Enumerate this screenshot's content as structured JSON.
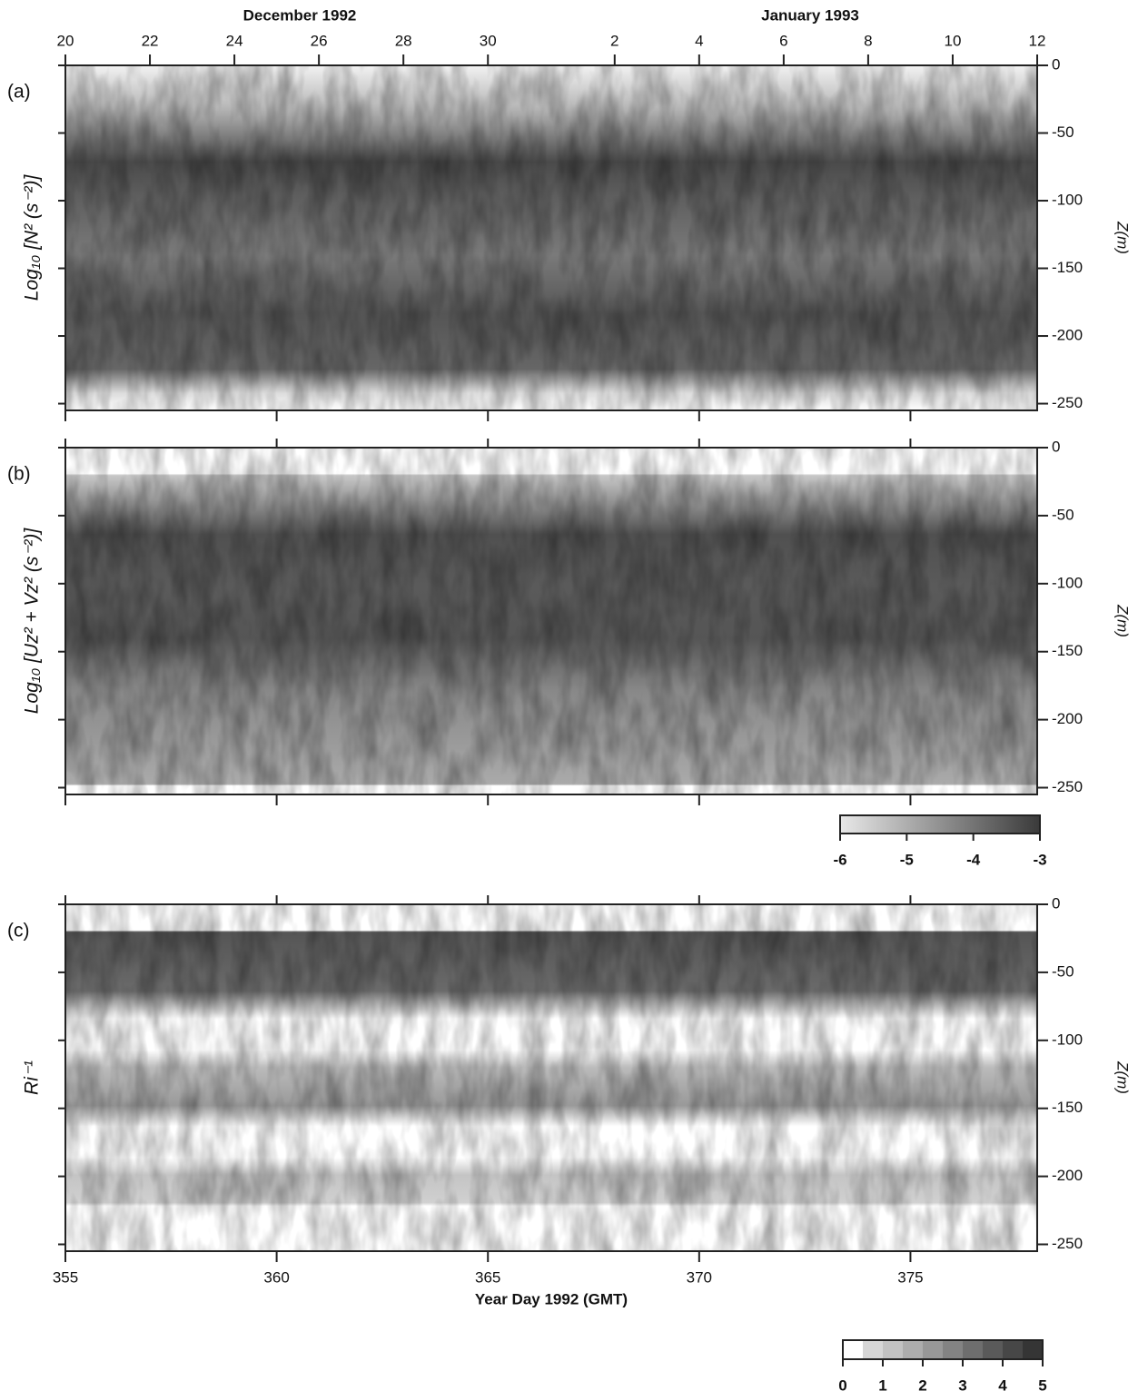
{
  "chart_data": [
    {
      "type": "contour",
      "panel_label": "(a)",
      "field_label": "Log₁₀ [N² (s⁻²)]",
      "ylabel": "Z(m)",
      "month_labels": [
        "December 1992",
        "January 1993"
      ],
      "top_xticks": [
        {
          "value": 355,
          "label": "20"
        },
        {
          "value": 357,
          "label": "22"
        },
        {
          "value": 359,
          "label": "24"
        },
        {
          "value": 361,
          "label": "26"
        },
        {
          "value": 363,
          "label": "28"
        },
        {
          "value": 365,
          "label": "30"
        },
        {
          "value": 368,
          "label": "2"
        },
        {
          "value": 370,
          "label": "4"
        },
        {
          "value": 372,
          "label": "6"
        },
        {
          "value": 374,
          "label": "8"
        },
        {
          "value": 376,
          "label": "10"
        },
        {
          "value": 378,
          "label": "12"
        }
      ],
      "xlim": [
        355,
        378
      ],
      "ylim": [
        -255,
        0
      ],
      "yticks": [
        0,
        -50,
        -100,
        -150,
        -200,
        -250
      ]
    },
    {
      "type": "contour",
      "panel_label": "(b)",
      "field_label": "Log₁₀ [Uz² + Vz² (s⁻²)]",
      "ylabel": "Z(m)",
      "xlim": [
        355,
        378
      ],
      "ylim": [
        -255,
        0
      ],
      "yticks": [
        0,
        -50,
        -100,
        -150,
        -200,
        -250
      ],
      "colorbar": {
        "clim": [
          -6,
          -3
        ],
        "ticks": [
          -6,
          -5,
          -4,
          -3
        ],
        "colors": [
          "#e8e8e8",
          "#3a3a3a"
        ]
      }
    },
    {
      "type": "contour",
      "panel_label": "(c)",
      "field_label": "Ri⁻¹",
      "ylabel": "Z(m)",
      "xlabel": "Year Day 1992 (GMT)",
      "xlim": [
        355,
        378
      ],
      "ylim": [
        -255,
        0
      ],
      "yticks": [
        0,
        -50,
        -100,
        -150,
        -200,
        -250
      ],
      "xticks": [
        355,
        360,
        365,
        370,
        375
      ],
      "colorbar": {
        "clim": [
          0,
          5
        ],
        "ticks": [
          0,
          1,
          2,
          3,
          4,
          5
        ],
        "colors": [
          "#ffffff",
          "#d6d6d6",
          "#c2c2c2",
          "#adadad",
          "#989898",
          "#838383",
          "#6e6e6e",
          "#5a5a5a",
          "#474747",
          "#353535"
        ]
      }
    }
  ]
}
